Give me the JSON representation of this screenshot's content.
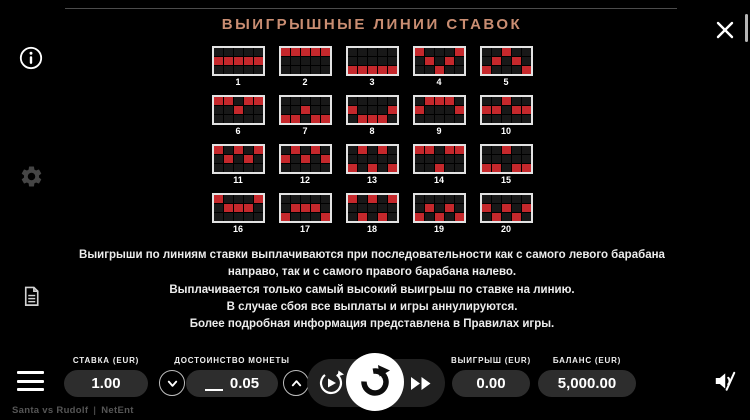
{
  "title": "ВЫИГРЫШНЫЕ ЛИНИИ СТАВОК",
  "colors": {
    "title": "#c98d72",
    "payline_red": "#c5282c",
    "pill_bg": "#2d2d2d"
  },
  "sidebar": {
    "items": [
      {
        "icon": "info-icon"
      },
      {
        "icon": "settings-gear-icon"
      },
      {
        "icon": "game-rules-icon"
      }
    ]
  },
  "paylines": [
    {
      "num": "1",
      "pattern": [
        1,
        1,
        1,
        1,
        1
      ]
    },
    {
      "num": "2",
      "pattern": [
        0,
        0,
        0,
        0,
        0
      ]
    },
    {
      "num": "3",
      "pattern": [
        2,
        2,
        2,
        2,
        2
      ]
    },
    {
      "num": "4",
      "pattern": [
        0,
        1,
        2,
        1,
        0
      ]
    },
    {
      "num": "5",
      "pattern": [
        2,
        1,
        0,
        1,
        2
      ]
    },
    {
      "num": "6",
      "pattern": [
        0,
        0,
        1,
        0,
        0
      ]
    },
    {
      "num": "7",
      "pattern": [
        2,
        2,
        1,
        2,
        2
      ]
    },
    {
      "num": "8",
      "pattern": [
        1,
        2,
        2,
        2,
        1
      ]
    },
    {
      "num": "9",
      "pattern": [
        1,
        0,
        0,
        0,
        1
      ]
    },
    {
      "num": "10",
      "pattern": [
        1,
        1,
        0,
        1,
        1
      ]
    },
    {
      "num": "11",
      "pattern": [
        0,
        1,
        0,
        1,
        0
      ]
    },
    {
      "num": "12",
      "pattern": [
        1,
        0,
        1,
        0,
        1
      ]
    },
    {
      "num": "13",
      "pattern": [
        2,
        0,
        2,
        0,
        2
      ]
    },
    {
      "num": "14",
      "pattern": [
        0,
        0,
        2,
        0,
        0
      ]
    },
    {
      "num": "15",
      "pattern": [
        2,
        2,
        0,
        2,
        2
      ]
    },
    {
      "num": "16",
      "pattern": [
        0,
        1,
        1,
        1,
        0
      ]
    },
    {
      "num": "17",
      "pattern": [
        2,
        1,
        1,
        1,
        2
      ]
    },
    {
      "num": "18",
      "pattern": [
        0,
        2,
        0,
        2,
        0
      ]
    },
    {
      "num": "19",
      "pattern": [
        2,
        1,
        2,
        1,
        2
      ]
    },
    {
      "num": "20",
      "pattern": [
        1,
        2,
        1,
        2,
        1
      ]
    }
  ],
  "paragraphs": [
    "Выигрыши по линиям ставки выплачиваются при последовательности как с самого левого барабана направо, так и с самого правого барабана налево.",
    "Выплачивается только самый высокий выигрыш по ставке на линию.",
    "В случае сбоя все выплаты и игры аннулируются.",
    "Более подробная информация представлена в Правилах игры."
  ],
  "bottom_bar": {
    "bet": {
      "label": "СТАВКА (EUR)",
      "value": "1.00"
    },
    "coin_value": {
      "label": "ДОСТОИНСТВО МОНЕТЫ",
      "value": "0.05"
    },
    "win": {
      "label": "ВЫИГРЫШ (EUR)",
      "value": "0.00"
    },
    "balance": {
      "label": "БАЛАНС (EUR)",
      "value": "5,000.00"
    },
    "icons": [
      "menu-hamburger-icon",
      "autoplay-icon",
      "spin-icon",
      "fast-forward-icon",
      "speaker-muted-icon"
    ]
  },
  "footer": {
    "game_title": "Santa vs Rudolf",
    "divider": "|",
    "provider": "NetEnt"
  }
}
